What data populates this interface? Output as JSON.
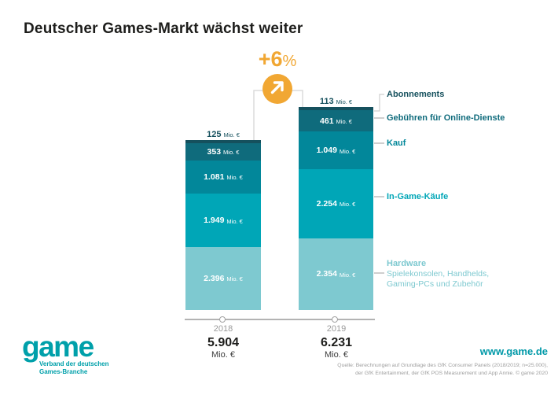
{
  "title": "Deutscher Games-Markt wächst weiter",
  "growth": {
    "value": "+6",
    "percent": "%",
    "color": "#f1a733",
    "icon": "arrow-up-right"
  },
  "chart_data": {
    "type": "bar",
    "stacked": true,
    "title": "Deutscher Games-Markt wächst weiter",
    "unit": "Mio. €",
    "categories": [
      "2018",
      "2019"
    ],
    "totals": {
      "2018": "5.904",
      "2019": "6.231"
    },
    "growth_label": "+6%",
    "legend_position": "right",
    "series": [
      {
        "name": "Abonnements",
        "color": "#15505d",
        "values": [
          125,
          113
        ],
        "display": [
          "125",
          "113"
        ],
        "label_outside": true
      },
      {
        "name": "Gebühren für Online-Dienste",
        "color": "#0f6b7c",
        "values": [
          353,
          461
        ],
        "display": [
          "353",
          "461"
        ]
      },
      {
        "name": "Kauf",
        "color": "#02879a",
        "values": [
          1081,
          1049
        ],
        "display": [
          "1.081",
          "1.049"
        ]
      },
      {
        "name": "In-Game-Käufe",
        "color": "#00a6b7",
        "values": [
          1949,
          2254
        ],
        "display": [
          "1.949",
          "2.254"
        ]
      },
      {
        "name": "Hardware",
        "color": "#7ec9d0",
        "values": [
          2396,
          2354
        ],
        "display": [
          "2.396",
          "2.354"
        ],
        "sublabel_lines": [
          "Spielekonsolen, Handhelds,",
          "Gaming-PCs und Zubehör"
        ]
      }
    ]
  },
  "footer": {
    "logo": {
      "wordmark": "game",
      "tagline_lines": [
        "Verband der deutschen",
        "Games-Branche"
      ],
      "color": "#00a0aa"
    },
    "website": "www.game.de",
    "source_lines": [
      "Quelle: Berechnungen auf Grundlage des GfK Consumer Panels (2018/2019; n=25.000),",
      "der GfK Entertainment, der GfK POS Measurement und App Annie. © game 2020"
    ]
  }
}
